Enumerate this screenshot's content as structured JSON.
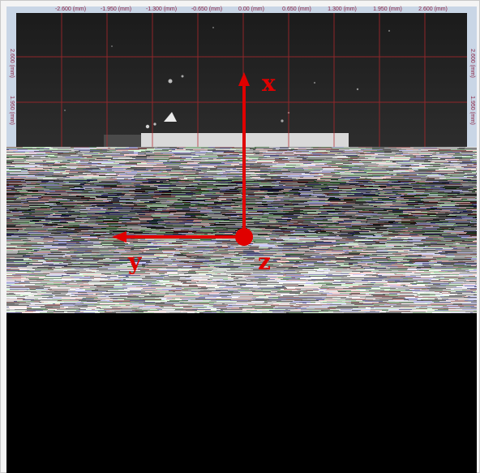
{
  "viewer": {
    "x_ruler_ticks": [
      "-2.600 (mm)",
      "-1.950 (mm)",
      "-1.300 (mm)",
      "-0.650 (mm)",
      "0.00 (mm)",
      "0.650 (mm)",
      "1.300 (mm)",
      "1.950 (mm)",
      "2.600 (mm)"
    ],
    "left_ruler_ticks": [
      "2.600 (mm)",
      "1.950 (mm)"
    ],
    "right_ruler_ticks": [
      "2.600 (mm)",
      "1.950 (mm)"
    ],
    "grid_color": "#b4282d",
    "ruler_text_color": "#8a2040"
  },
  "axes": {
    "x_label": "x",
    "y_label": "y",
    "z_label": "z",
    "arrow_color": "#e00000"
  }
}
